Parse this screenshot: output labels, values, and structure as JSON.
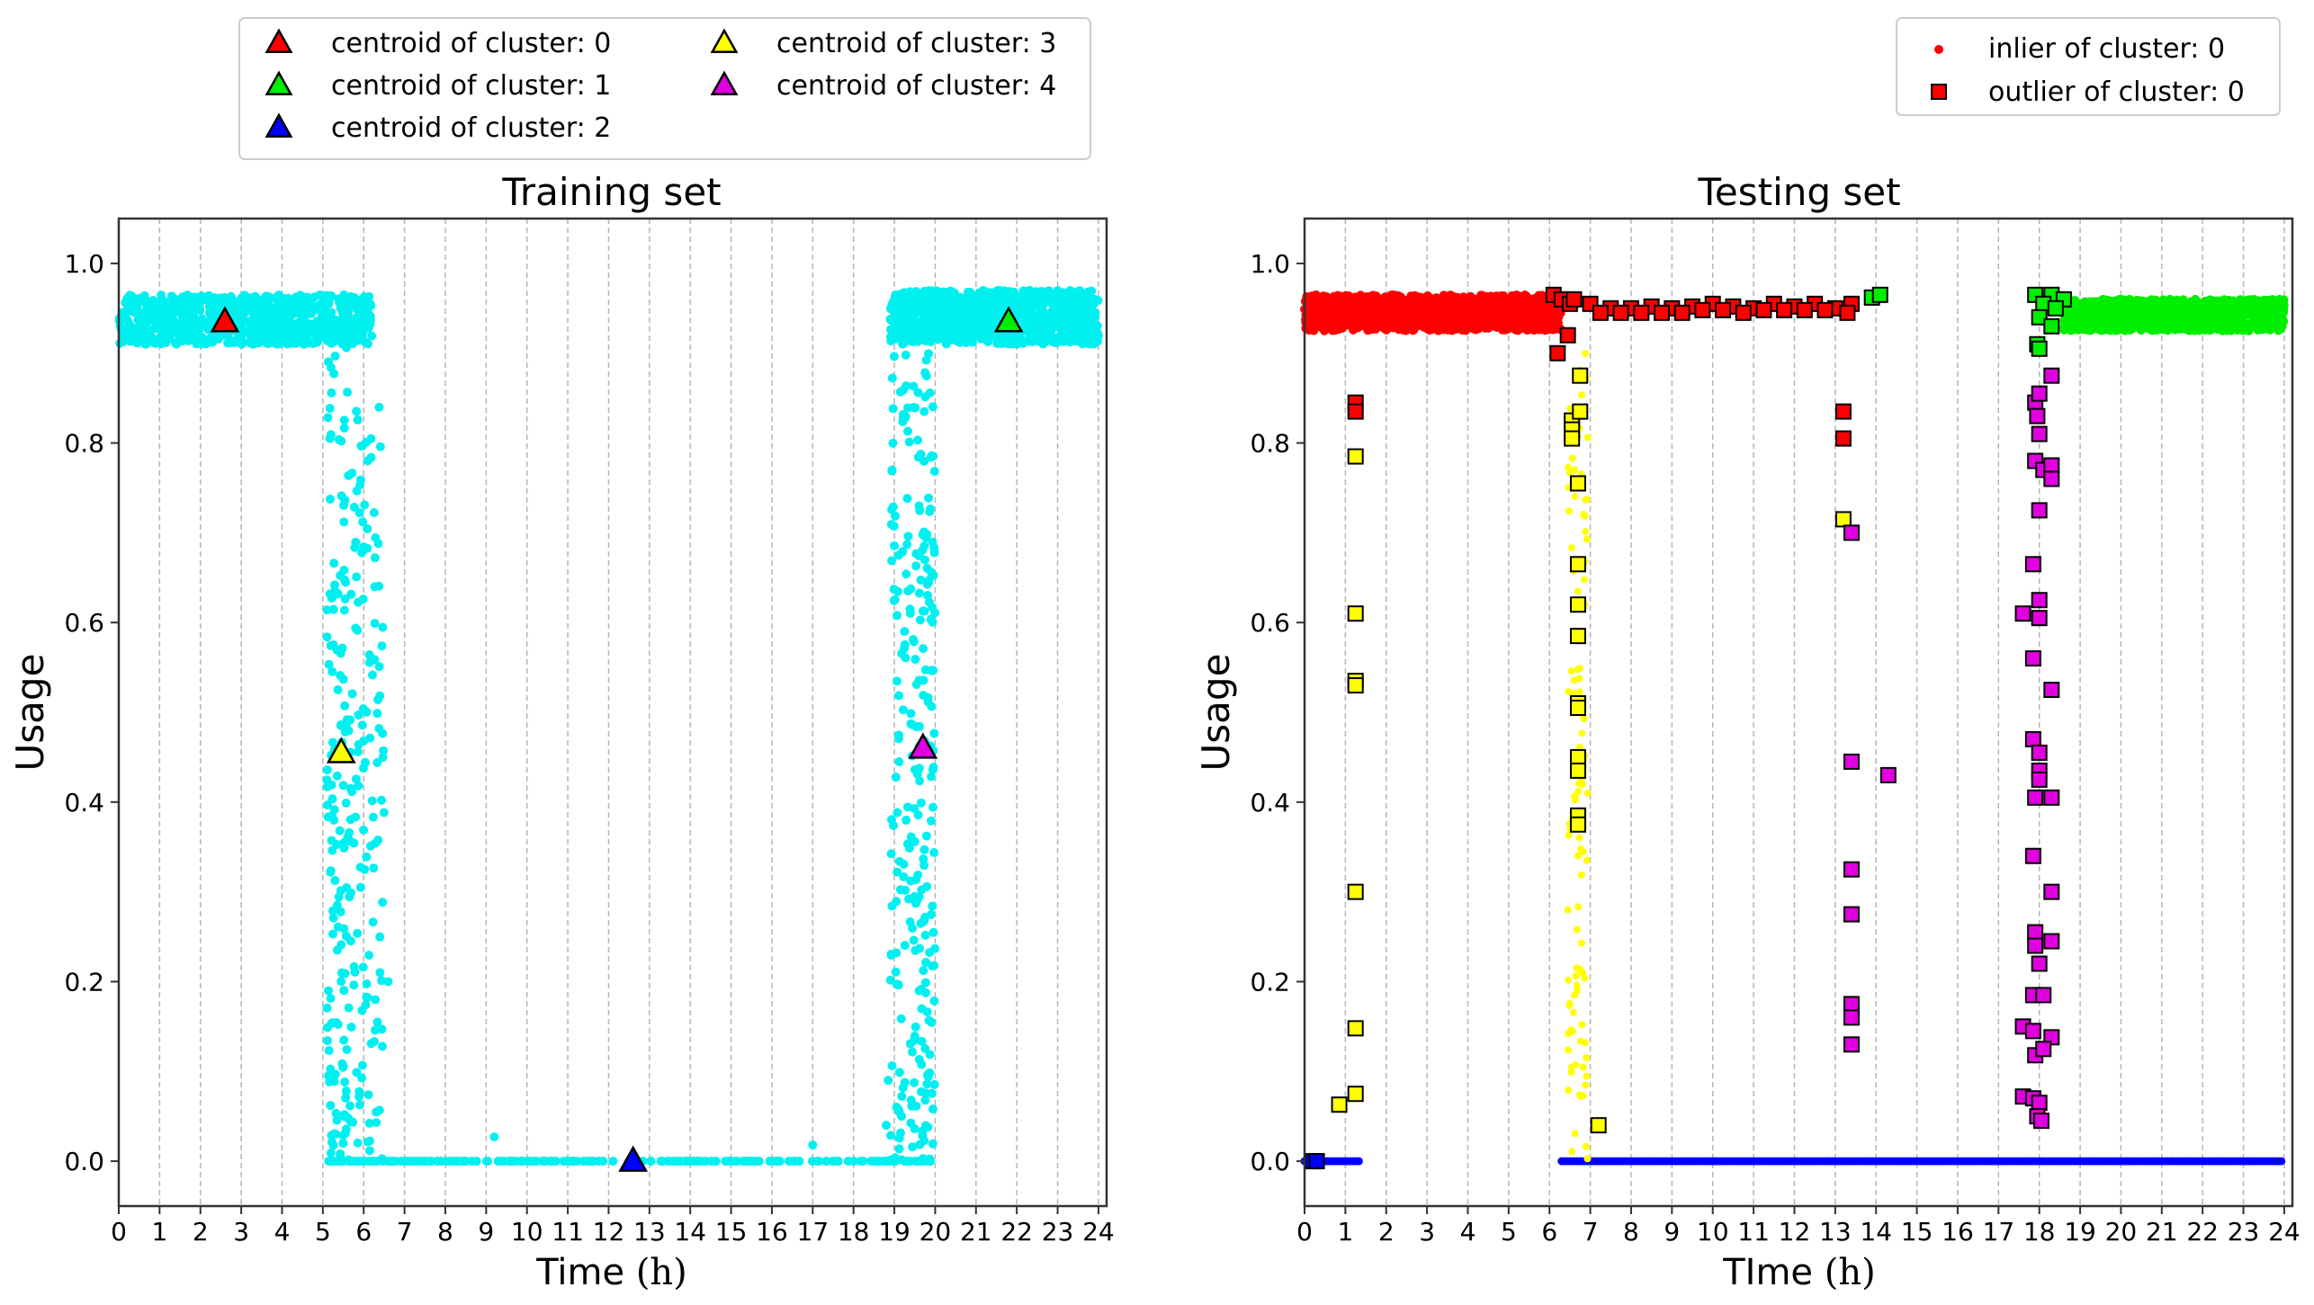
{
  "colors": {
    "cyan": "#00f0f0",
    "red": "#ff0000",
    "green": "#00ee00",
    "blue": "#0000ff",
    "yellow": "#ffff00",
    "magenta": "#e000e0",
    "grid": "#b5b5b5"
  },
  "chart_data": [
    {
      "type": "scatter",
      "title": "Training set",
      "xlabel": "Time ",
      "xlabel_unit": "(h)",
      "ylabel": "Usage",
      "xlim": [
        0,
        24.2
      ],
      "ylim": [
        -0.05,
        1.05
      ],
      "xticks": [
        "0",
        "1",
        "2",
        "3",
        "4",
        "5",
        "6",
        "7",
        "8",
        "9",
        "10",
        "11",
        "12",
        "13",
        "14",
        "15",
        "16",
        "17",
        "18",
        "19",
        "20",
        "21",
        "22",
        "23",
        "24"
      ],
      "yticks": [
        "0.0",
        "0.2",
        "0.4",
        "0.6",
        "0.8",
        "1.0"
      ],
      "legend_position": "top-center",
      "legend": [
        {
          "label": "centroid of cluster: 0",
          "color": "#ff0000"
        },
        {
          "label": "centroid of cluster: 1",
          "color": "#00ee00"
        },
        {
          "label": "centroid of cluster: 2",
          "color": "#0000ff"
        },
        {
          "label": "centroid of cluster: 3",
          "color": "#ffff00"
        },
        {
          "label": "centroid of cluster: 4",
          "color": "#e000e0"
        }
      ],
      "centroids": [
        {
          "cluster": 0,
          "x": 2.6,
          "y": 0.935,
          "color": "#ff0000"
        },
        {
          "cluster": 1,
          "x": 21.8,
          "y": 0.935,
          "color": "#00ee00"
        },
        {
          "cluster": 2,
          "x": 12.6,
          "y": 0.0,
          "color": "#0000ff"
        },
        {
          "cluster": 3,
          "x": 5.45,
          "y": 0.455,
          "color": "#ffff00"
        },
        {
          "cluster": 4,
          "x": 19.7,
          "y": 0.46,
          "color": "#e000e0"
        }
      ],
      "points": {
        "color": "#00f0f0",
        "bands": [
          {
            "x": [
              0.0,
              6.2
            ],
            "y": [
              0.91,
              0.965
            ]
          },
          {
            "x": [
              18.9,
              24.0
            ],
            "y": [
              0.91,
              0.97
            ]
          },
          {
            "x": [
              5.1,
              20.0
            ],
            "y": [
              0.0,
              0.0
            ]
          }
        ],
        "columns": [
          {
            "x": [
              5.1,
              5.6
            ],
            "y": [
              0.0,
              0.92
            ]
          },
          {
            "x": [
              5.6,
              6.5
            ],
            "y": [
              0.0,
              0.85
            ]
          },
          {
            "x": [
              18.9,
              19.6
            ],
            "y": [
              0.0,
              0.9
            ]
          },
          {
            "x": [
              19.6,
              20.0
            ],
            "y": [
              0.0,
              0.95
            ]
          }
        ],
        "scatter": [
          [
            9.2,
            0.027
          ],
          [
            17.0,
            0.018
          ],
          [
            6.4,
            0.21
          ],
          [
            6.6,
            0.2
          ],
          [
            18.8,
            0.04
          ],
          [
            18.85,
            0.09
          ]
        ]
      }
    },
    {
      "type": "scatter",
      "title": "Testing set",
      "xlabel": "TIme ",
      "xlabel_unit": "(h)",
      "ylabel": "Usage",
      "xlim": [
        0,
        24.2
      ],
      "ylim": [
        -0.05,
        1.05
      ],
      "xticks": [
        "0",
        "1",
        "2",
        "3",
        "4",
        "5",
        "6",
        "7",
        "8",
        "9",
        "10",
        "11",
        "12",
        "13",
        "14",
        "15",
        "16",
        "17",
        "18",
        "19",
        "20",
        "21",
        "22",
        "23",
        "24"
      ],
      "yticks": [
        "0.0",
        "0.2",
        "0.4",
        "0.6",
        "0.8",
        "1.0"
      ],
      "legend_position": "top-right",
      "legend": [
        {
          "label": "inlier of cluster: 0",
          "color": "#ff0000",
          "marker": "dot"
        },
        {
          "label": "outlier of cluster: 0",
          "color": "#ff0000",
          "marker": "square"
        }
      ],
      "inliers": [
        {
          "cluster": 0,
          "color": "#ff0000",
          "x": [
            0.0,
            6.3
          ],
          "y": [
            0.925,
            0.965
          ]
        },
        {
          "cluster": 1,
          "color": "#00ee00",
          "x": [
            18.6,
            24.0
          ],
          "y": [
            0.925,
            0.96
          ]
        },
        {
          "cluster": 2,
          "color": "#0000ff",
          "x": [
            6.3,
            24.0
          ],
          "y": [
            0.0,
            0.0
          ]
        },
        {
          "cluster": 2,
          "color": "#0000ff",
          "x": [
            0.0,
            1.4
          ],
          "y": [
            0.0,
            0.0
          ]
        },
        {
          "cluster": 3,
          "color": "#ffff00",
          "x": [
            6.4,
            7.0
          ],
          "y": [
            0.0,
            0.9
          ]
        }
      ],
      "outliers": [
        {
          "color": "#ff0000",
          "points": [
            [
              6.1,
              0.965
            ],
            [
              6.3,
              0.96
            ],
            [
              6.5,
              0.955
            ],
            [
              6.6,
              0.96
            ],
            [
              6.2,
              0.9
            ],
            [
              6.45,
              0.92
            ],
            [
              1.25,
              0.845
            ],
            [
              1.25,
              0.835
            ],
            [
              13.2,
              0.835
            ],
            [
              13.2,
              0.805
            ],
            [
              7.0,
              0.955
            ],
            [
              7.5,
              0.95
            ],
            [
              8.0,
              0.95
            ],
            [
              8.5,
              0.952
            ],
            [
              9.0,
              0.95
            ],
            [
              9.5,
              0.952
            ],
            [
              10.0,
              0.955
            ],
            [
              10.5,
              0.952
            ],
            [
              11.0,
              0.95
            ],
            [
              11.5,
              0.955
            ],
            [
              12.0,
              0.952
            ],
            [
              12.5,
              0.955
            ],
            [
              13.0,
              0.95
            ],
            [
              13.4,
              0.955
            ],
            [
              7.25,
              0.945
            ],
            [
              7.75,
              0.945
            ],
            [
              8.25,
              0.945
            ],
            [
              8.75,
              0.945
            ],
            [
              9.25,
              0.945
            ],
            [
              9.75,
              0.948
            ],
            [
              10.25,
              0.948
            ],
            [
              10.75,
              0.945
            ],
            [
              11.25,
              0.948
            ],
            [
              11.75,
              0.948
            ],
            [
              12.25,
              0.948
            ],
            [
              12.75,
              0.948
            ],
            [
              13.3,
              0.945
            ]
          ]
        },
        {
          "color": "#ffff00",
          "points": [
            [
              1.25,
              0.785
            ],
            [
              1.25,
              0.61
            ],
            [
              1.25,
              0.535
            ],
            [
              1.25,
              0.53
            ],
            [
              1.25,
              0.3
            ],
            [
              1.25,
              0.148
            ],
            [
              1.25,
              0.075
            ],
            [
              0.85,
              0.063
            ],
            [
              6.55,
              0.825
            ],
            [
              6.55,
              0.815
            ],
            [
              6.55,
              0.805
            ],
            [
              6.75,
              0.875
            ],
            [
              6.75,
              0.835
            ],
            [
              6.7,
              0.755
            ],
            [
              6.7,
              0.665
            ],
            [
              6.7,
              0.62
            ],
            [
              6.7,
              0.585
            ],
            [
              6.7,
              0.51
            ],
            [
              6.7,
              0.505
            ],
            [
              6.7,
              0.45
            ],
            [
              6.7,
              0.435
            ],
            [
              6.7,
              0.385
            ],
            [
              6.7,
              0.375
            ],
            [
              7.2,
              0.04
            ],
            [
              13.2,
              0.715
            ]
          ]
        },
        {
          "color": "#00ee00",
          "points": [
            [
              13.9,
              0.962
            ],
            [
              14.1,
              0.965
            ],
            [
              17.9,
              0.965
            ],
            [
              18.3,
              0.965
            ],
            [
              18.6,
              0.96
            ],
            [
              18.1,
              0.955
            ],
            [
              18.4,
              0.95
            ],
            [
              18.0,
              0.94
            ],
            [
              18.3,
              0.93
            ],
            [
              17.95,
              0.91
            ],
            [
              18.0,
              0.905
            ]
          ]
        },
        {
          "color": "#e000e0",
          "points": [
            [
              13.4,
              0.7
            ],
            [
              13.4,
              0.445
            ],
            [
              14.3,
              0.43
            ],
            [
              13.4,
              0.325
            ],
            [
              13.4,
              0.275
            ],
            [
              13.4,
              0.175
            ],
            [
              13.4,
              0.16
            ],
            [
              13.4,
              0.13
            ],
            [
              17.9,
              0.845
            ],
            [
              18.0,
              0.855
            ],
            [
              17.95,
              0.83
            ],
            [
              18.3,
              0.875
            ],
            [
              18.0,
              0.81
            ],
            [
              17.9,
              0.78
            ],
            [
              18.1,
              0.77
            ],
            [
              18.3,
              0.775
            ],
            [
              18.3,
              0.76
            ],
            [
              18.0,
              0.725
            ],
            [
              17.85,
              0.665
            ],
            [
              17.6,
              0.61
            ],
            [
              18.0,
              0.625
            ],
            [
              18.0,
              0.605
            ],
            [
              17.85,
              0.56
            ],
            [
              18.3,
              0.525
            ],
            [
              17.85,
              0.47
            ],
            [
              18.0,
              0.455
            ],
            [
              18.0,
              0.435
            ],
            [
              18.0,
              0.425
            ],
            [
              17.9,
              0.405
            ],
            [
              18.3,
              0.405
            ],
            [
              17.85,
              0.34
            ],
            [
              18.3,
              0.3
            ],
            [
              17.9,
              0.255
            ],
            [
              17.9,
              0.24
            ],
            [
              18.3,
              0.245
            ],
            [
              18.0,
              0.22
            ],
            [
              17.85,
              0.185
            ],
            [
              18.1,
              0.185
            ],
            [
              17.6,
              0.15
            ],
            [
              17.85,
              0.145
            ],
            [
              18.3,
              0.138
            ],
            [
              17.9,
              0.118
            ],
            [
              18.1,
              0.125
            ],
            [
              17.6,
              0.072
            ],
            [
              17.85,
              0.07
            ],
            [
              18.0,
              0.065
            ],
            [
              17.95,
              0.05
            ],
            [
              18.05,
              0.045
            ]
          ]
        },
        {
          "color": "#0000ff",
          "points": [
            [
              0.2,
              0.0
            ],
            [
              0.3,
              0.0
            ]
          ]
        }
      ]
    }
  ]
}
